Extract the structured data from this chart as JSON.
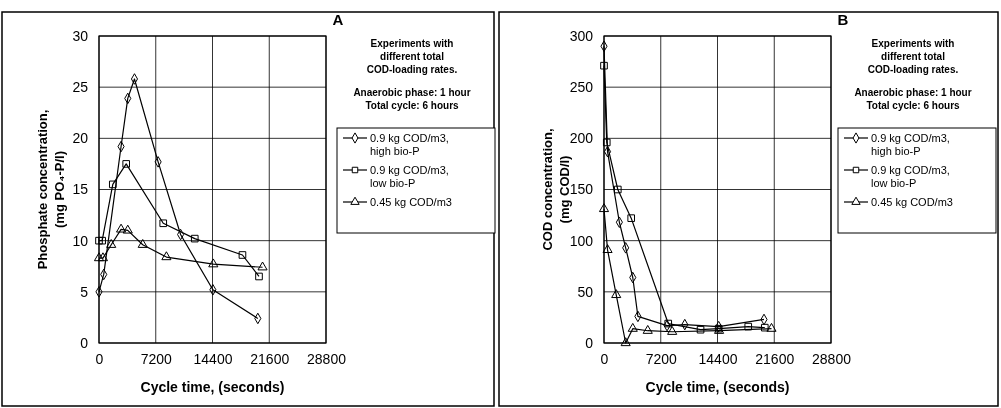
{
  "chart_data": [
    {
      "type": "line",
      "title": "A",
      "xlabel": "Cycle time, (seconds)",
      "ylabel": "Phosphate concentration,\n(mg PO₄-P/l)",
      "xlim": [
        0,
        28800
      ],
      "xticks": [
        0,
        7200,
        14400,
        21600,
        28800
      ],
      "ylim": [
        0,
        30
      ],
      "yticks": [
        0,
        5,
        10,
        15,
        20,
        25,
        30
      ],
      "grid": true,
      "legend": "right",
      "line_style": "solid",
      "annotations": [
        "Experiments with\ndifferent total\nCOD-loading rates.",
        "Anaerobic phase: 1 hour\nTotal cycle: 6 hours"
      ],
      "series": [
        {
          "name": "0.9 kg COD/m3, high bio-P",
          "color": "#000000",
          "marker": "diamond",
          "x": [
            0,
            600,
            2800,
            3650,
            4500,
            7500,
            10350,
            14450,
            20150
          ],
          "values": [
            5,
            6.7,
            19.2,
            23.9,
            25.8,
            17.7,
            10.6,
            5.2,
            2.4
          ]
        },
        {
          "name": "0.9 kg COD/m3, low bio-P",
          "color": "#000000",
          "marker": "square",
          "x": [
            0,
            400,
            1750,
            3450,
            8150,
            12150,
            18200,
            20300
          ],
          "values": [
            10,
            10,
            15.5,
            17.5,
            11.7,
            10.2,
            8.6,
            6.5
          ]
        },
        {
          "name": "0.45 kg COD/m3",
          "color": "#000000",
          "marker": "triangle",
          "x": [
            0,
            500,
            1550,
            2800,
            3650,
            5550,
            8550,
            14500,
            20750
          ],
          "values": [
            8.3,
            8.3,
            9.6,
            11.1,
            11,
            9.6,
            8.4,
            7.7,
            7.4
          ]
        }
      ]
    },
    {
      "type": "line",
      "title": "B",
      "xlabel": "Cycle time, (seconds)",
      "ylabel": "COD concentration,\n(mg COD/l)",
      "xlim": [
        0,
        28800
      ],
      "xticks": [
        0,
        7200,
        14400,
        21600,
        28800
      ],
      "ylim": [
        0,
        300
      ],
      "yticks": [
        0,
        50,
        100,
        150,
        200,
        250,
        300
      ],
      "grid": true,
      "legend": "right",
      "line_style": "solid",
      "annotations": [
        "Experiments with\ndifferent total\nCOD-loading rates.",
        "Anaerobic phase: 1 hour\nTotal cycle: 6 hours"
      ],
      "series": [
        {
          "name": "0.9 kg COD/m3, high bio-P",
          "color": "#000000",
          "marker": "diamond",
          "x": [
            0,
            450,
            1950,
            2750,
            3650,
            4300,
            8000,
            10250,
            14550,
            20300
          ],
          "values": [
            290,
            187,
            118,
            93,
            64,
            26,
            17,
            18,
            16,
            23
          ]
        },
        {
          "name": "0.9 kg COD/m3, low bio-P",
          "color": "#000000",
          "marker": "square",
          "x": [
            0,
            350,
            1750,
            3450,
            8150,
            12250,
            14550,
            18300,
            20400
          ],
          "values": [
            271,
            196,
            150,
            122,
            19,
            13,
            14,
            16,
            15
          ]
        },
        {
          "name": "0.45 kg COD/m3",
          "color": "#000000",
          "marker": "triangle",
          "x": [
            0,
            450,
            1550,
            2750,
            3650,
            5550,
            8650,
            14600,
            21250
          ],
          "values": [
            131,
            91,
            47,
            0,
            14,
            12,
            11,
            12,
            14
          ]
        }
      ]
    }
  ]
}
